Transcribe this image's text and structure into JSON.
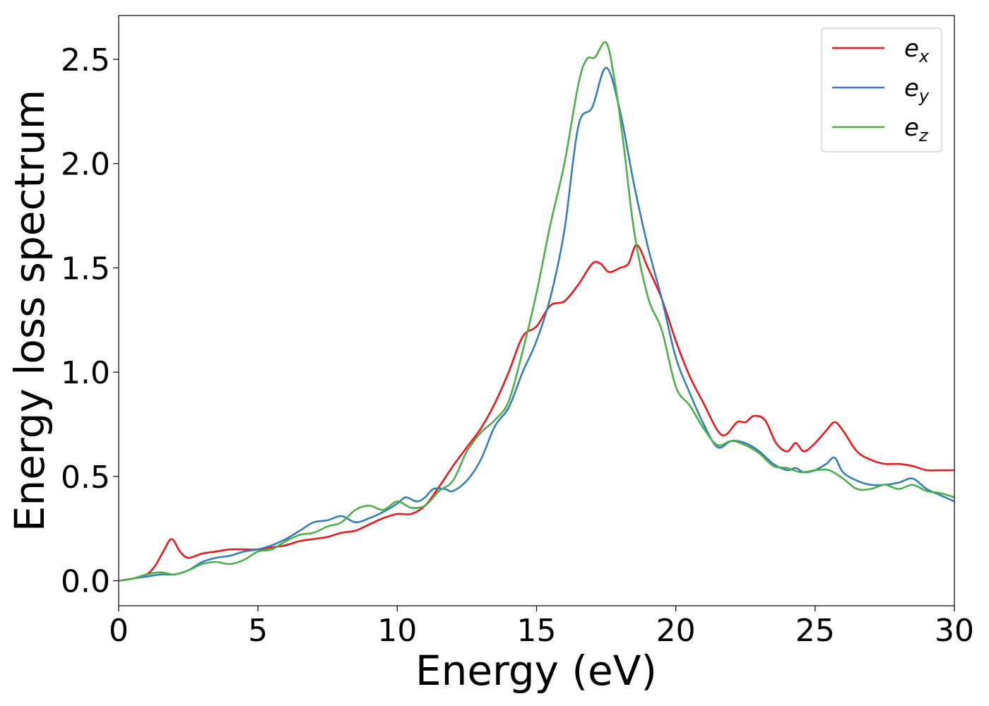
{
  "chart_data": {
    "type": "line",
    "xlabel": "Energy (eV)",
    "ylabel": "Energy loss spectrum",
    "xlim": [
      0,
      30
    ],
    "ylim": [
      -0.12,
      2.71
    ],
    "xticks": [
      "0",
      "5",
      "10",
      "15",
      "20",
      "25",
      "30"
    ],
    "yticks": [
      "0.0",
      "0.5",
      "1.0",
      "1.5",
      "2.0",
      "2.5"
    ],
    "grid": false,
    "legend_position": "top-right",
    "series": [
      {
        "name": "e_x",
        "label_base": "e",
        "label_sub": "x",
        "color": "#e41a1c",
        "x": [
          0,
          0.5,
          1.0,
          1.3,
          1.6,
          1.9,
          2.2,
          2.5,
          3.0,
          3.5,
          4.0,
          4.5,
          5.0,
          5.5,
          6.0,
          6.5,
          7.0,
          7.5,
          8.0,
          8.5,
          9.0,
          9.5,
          10.0,
          10.5,
          11.0,
          11.5,
          12.0,
          12.5,
          13.0,
          13.5,
          14.0,
          14.5,
          15.0,
          15.5,
          16.0,
          16.5,
          17.0,
          17.3,
          17.6,
          18.0,
          18.3,
          18.6,
          19.0,
          19.5,
          20.0,
          20.5,
          21.0,
          21.5,
          21.8,
          22.2,
          22.5,
          22.8,
          23.2,
          23.6,
          24.0,
          24.3,
          24.6,
          25.0,
          25.4,
          25.7,
          26.0,
          26.5,
          27.0,
          27.5,
          28.0,
          28.5,
          29.0,
          29.5,
          30.0
        ],
        "values": [
          0.0,
          0.01,
          0.03,
          0.07,
          0.14,
          0.2,
          0.14,
          0.11,
          0.13,
          0.14,
          0.15,
          0.15,
          0.15,
          0.16,
          0.17,
          0.19,
          0.2,
          0.21,
          0.23,
          0.24,
          0.27,
          0.3,
          0.32,
          0.32,
          0.36,
          0.45,
          0.55,
          0.64,
          0.73,
          0.85,
          1.0,
          1.17,
          1.22,
          1.32,
          1.34,
          1.42,
          1.52,
          1.52,
          1.48,
          1.5,
          1.52,
          1.61,
          1.5,
          1.35,
          1.15,
          0.98,
          0.85,
          0.72,
          0.7,
          0.76,
          0.76,
          0.79,
          0.77,
          0.66,
          0.62,
          0.66,
          0.62,
          0.66,
          0.72,
          0.76,
          0.72,
          0.62,
          0.58,
          0.56,
          0.56,
          0.55,
          0.53,
          0.53,
          0.53
        ]
      },
      {
        "name": "e_y",
        "label_base": "e",
        "label_sub": "y",
        "color": "#377eb8",
        "x": [
          0,
          0.5,
          1.0,
          1.5,
          2.0,
          2.5,
          3.0,
          3.5,
          4.0,
          4.5,
          5.0,
          5.5,
          6.0,
          6.5,
          7.0,
          7.5,
          8.0,
          8.5,
          9.0,
          9.5,
          10.0,
          10.3,
          10.7,
          11.0,
          11.3,
          11.7,
          12.0,
          12.5,
          13.0,
          13.5,
          14.0,
          14.5,
          15.0,
          15.5,
          16.0,
          16.5,
          17.0,
          17.5,
          18.0,
          18.5,
          19.0,
          19.5,
          20.0,
          20.5,
          21.0,
          21.5,
          22.0,
          22.5,
          23.0,
          23.5,
          24.0,
          24.3,
          24.6,
          25.0,
          25.4,
          25.7,
          26.0,
          26.5,
          27.0,
          27.5,
          28.0,
          28.5,
          29.0,
          29.5,
          30.0
        ],
        "values": [
          0.0,
          0.01,
          0.02,
          0.03,
          0.03,
          0.05,
          0.09,
          0.11,
          0.12,
          0.14,
          0.15,
          0.17,
          0.2,
          0.24,
          0.28,
          0.29,
          0.31,
          0.28,
          0.3,
          0.33,
          0.37,
          0.4,
          0.38,
          0.4,
          0.44,
          0.44,
          0.43,
          0.48,
          0.58,
          0.74,
          0.83,
          1.0,
          1.15,
          1.36,
          1.68,
          2.18,
          2.27,
          2.46,
          2.25,
          1.9,
          1.6,
          1.35,
          1.07,
          0.9,
          0.75,
          0.64,
          0.67,
          0.66,
          0.62,
          0.56,
          0.53,
          0.54,
          0.52,
          0.53,
          0.56,
          0.59,
          0.52,
          0.48,
          0.46,
          0.46,
          0.47,
          0.49,
          0.44,
          0.41,
          0.38
        ]
      },
      {
        "name": "e_z",
        "label_base": "e",
        "label_sub": "z",
        "color": "#4daf4a",
        "x": [
          0,
          0.5,
          1.0,
          1.5,
          2.0,
          2.5,
          3.0,
          3.5,
          4.0,
          4.5,
          5.0,
          5.5,
          6.0,
          6.5,
          7.0,
          7.5,
          8.0,
          8.5,
          9.0,
          9.5,
          10.0,
          10.5,
          11.0,
          11.5,
          12.0,
          12.5,
          13.0,
          13.5,
          14.0,
          14.5,
          15.0,
          15.5,
          16.0,
          16.5,
          16.8,
          17.1,
          17.5,
          17.8,
          18.1,
          18.5,
          19.0,
          19.5,
          20.0,
          20.5,
          21.0,
          21.5,
          22.0,
          22.5,
          23.0,
          23.5,
          24.0,
          24.5,
          25.0,
          25.5,
          26.0,
          26.5,
          27.0,
          27.5,
          28.0,
          28.5,
          29.0,
          29.5,
          30.0
        ],
        "values": [
          0.0,
          0.01,
          0.03,
          0.04,
          0.03,
          0.05,
          0.08,
          0.09,
          0.08,
          0.1,
          0.14,
          0.15,
          0.19,
          0.22,
          0.23,
          0.26,
          0.28,
          0.34,
          0.36,
          0.34,
          0.38,
          0.35,
          0.36,
          0.43,
          0.48,
          0.62,
          0.71,
          0.77,
          0.86,
          1.1,
          1.38,
          1.71,
          2.0,
          2.38,
          2.5,
          2.51,
          2.58,
          2.4,
          2.12,
          1.68,
          1.36,
          1.2,
          0.93,
          0.84,
          0.73,
          0.65,
          0.67,
          0.65,
          0.61,
          0.55,
          0.54,
          0.52,
          0.53,
          0.53,
          0.49,
          0.44,
          0.44,
          0.46,
          0.44,
          0.46,
          0.43,
          0.42,
          0.4
        ]
      }
    ]
  }
}
